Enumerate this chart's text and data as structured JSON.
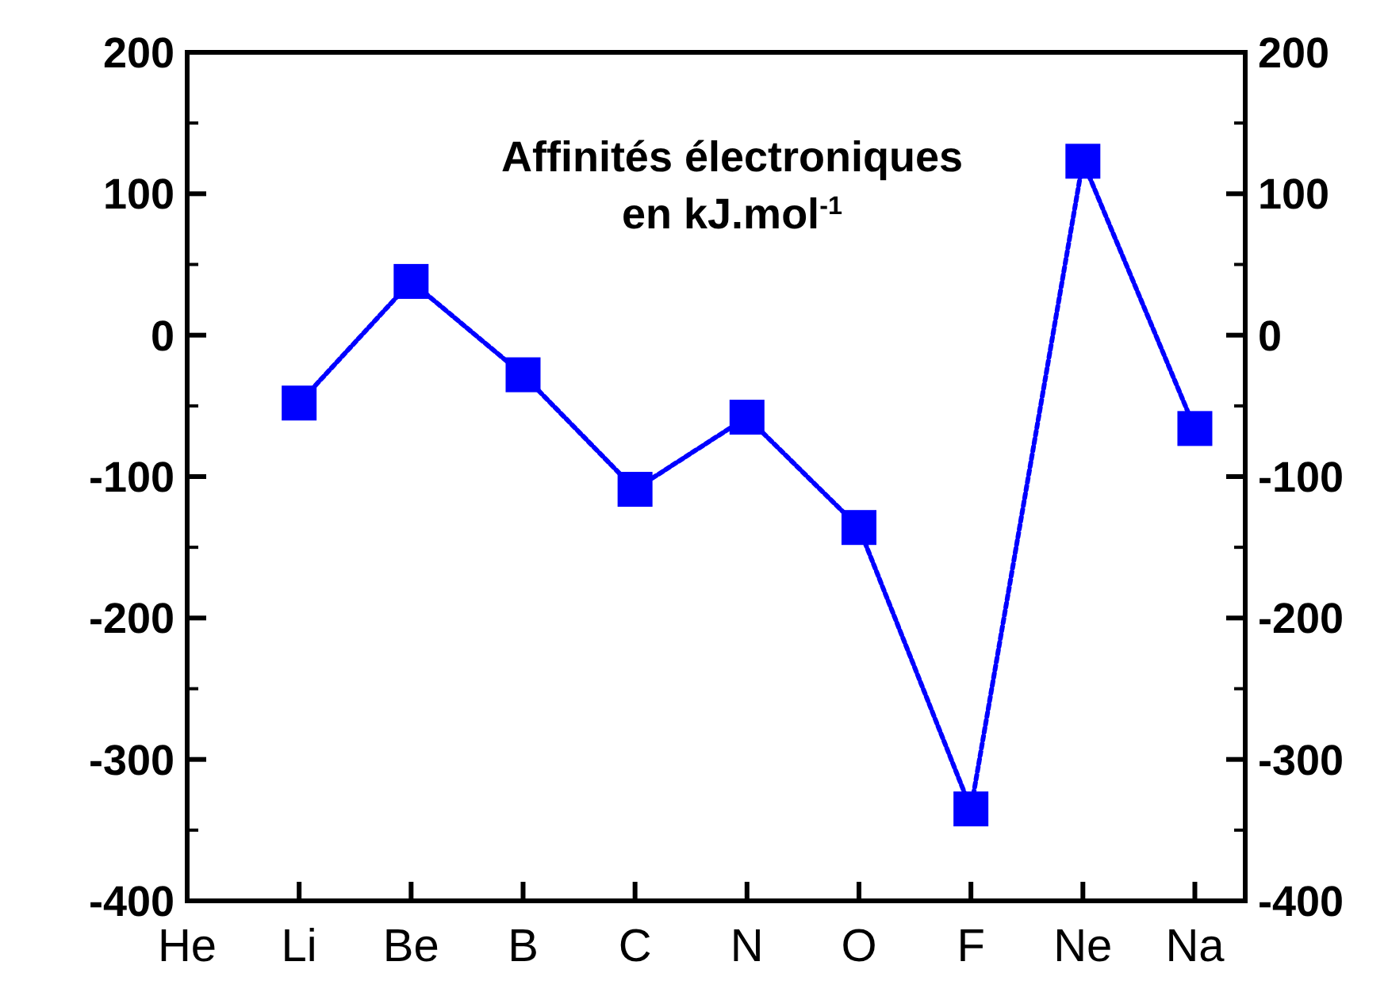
{
  "chart_data": {
    "type": "line",
    "categories": [
      "He",
      "Li",
      "Be",
      "B",
      "C",
      "N",
      "O",
      "F",
      "Ne",
      "Na"
    ],
    "series": [
      {
        "color": "#0000ff",
        "values": [
          null,
          -48,
          38,
          -28,
          -109,
          -58,
          -136,
          -335,
          123,
          -66
        ]
      }
    ],
    "ylim": [
      -400,
      200
    ],
    "yticks": [
      -400,
      -300,
      -200,
      -100,
      0,
      100,
      200
    ],
    "y2lim": [
      -400,
      200
    ],
    "y2ticks": [
      -400,
      -300,
      -200,
      -100,
      0,
      100,
      200
    ],
    "marker": "square",
    "line_style": "dotted",
    "grid": false,
    "annotations": [
      "Affinités électroniques\nen kJ.mol$^{-1}$"
    ]
  }
}
